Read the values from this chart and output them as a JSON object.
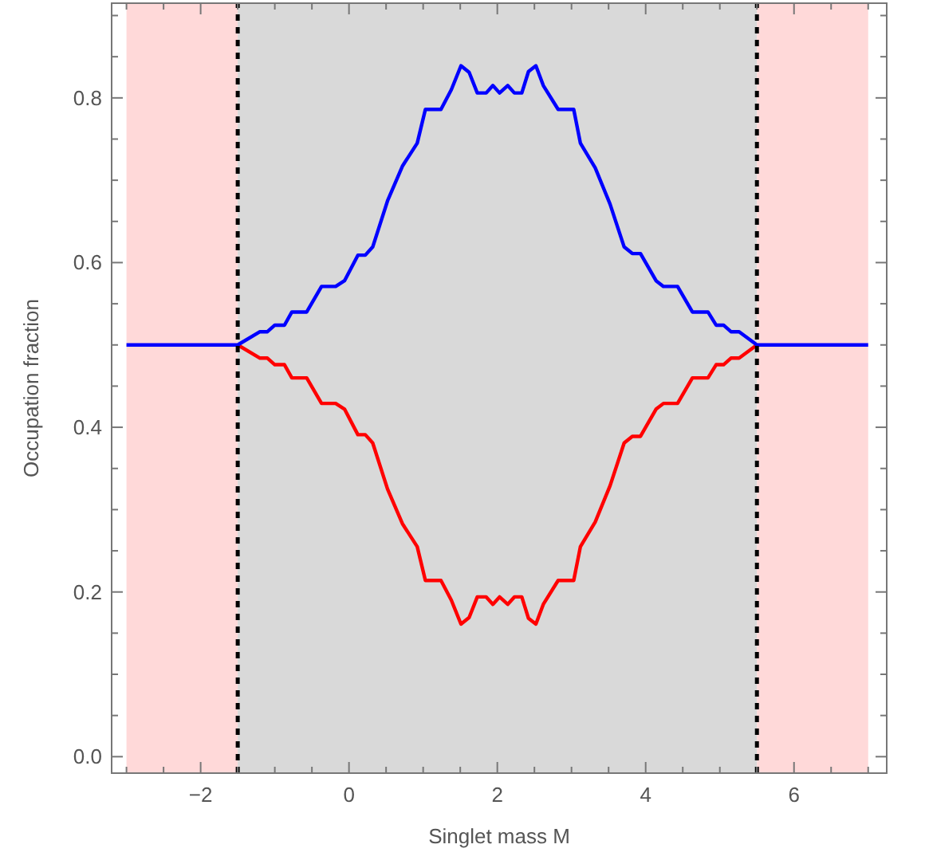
{
  "chart_data": {
    "type": "line",
    "xlabel": "Singlet mass M",
    "ylabel": "Occupation fraction",
    "xlim": [
      -3.2,
      7.25
    ],
    "ylim": [
      -0.02,
      0.915
    ],
    "xticks": [
      {
        "value": -3,
        "label": null
      },
      {
        "value": -2.5,
        "label": null
      },
      {
        "value": -2,
        "label": "−2"
      },
      {
        "value": -1.5,
        "label": null
      },
      {
        "value": -1,
        "label": null
      },
      {
        "value": -0.5,
        "label": null
      },
      0,
      {
        "value": 0.5,
        "label": null
      },
      {
        "value": 1,
        "label": null
      },
      {
        "value": 1.5,
        "label": null
      },
      2,
      {
        "value": 2.5,
        "label": null
      },
      {
        "value": 3,
        "label": null
      },
      {
        "value": 3.5,
        "label": null
      },
      4,
      {
        "value": 4.5,
        "label": null
      },
      {
        "value": 5,
        "label": null
      },
      {
        "value": 5.5,
        "label": null
      },
      6,
      {
        "value": 6.5,
        "label": null
      },
      {
        "value": 7,
        "label": null
      }
    ],
    "yticks": [
      {
        "value": 0,
        "label": "0.0"
      },
      {
        "value": 0.05,
        "label": null
      },
      {
        "value": 0.1,
        "label": null
      },
      {
        "value": 0.15,
        "label": null
      },
      0.2,
      {
        "value": 0.25,
        "label": null
      },
      {
        "value": 0.3,
        "label": null
      },
      {
        "value": 0.35,
        "label": null
      },
      0.4,
      {
        "value": 0.45,
        "label": null
      },
      {
        "value": 0.5,
        "label": null
      },
      {
        "value": 0.55,
        "label": null
      },
      0.6,
      {
        "value": 0.65,
        "label": null
      },
      {
        "value": 0.7,
        "label": null
      },
      {
        "value": 0.75,
        "label": null
      },
      0.8,
      {
        "value": 0.85,
        "label": null
      },
      {
        "value": 0.9,
        "label": null
      }
    ],
    "grid": false,
    "line_style": "solid",
    "marker": "none",
    "bands": [
      {
        "axis": "x",
        "from": -3,
        "to": -1.5,
        "color": "#ffd9d9"
      },
      {
        "axis": "x",
        "from": -1.5,
        "to": 5.5,
        "color": "#d9d9d9"
      },
      {
        "axis": "x",
        "from": 5.5,
        "to": 7,
        "color": "#ffd9d9"
      }
    ],
    "ref_lines": [
      {
        "axis": "x",
        "value": -1.5,
        "color": "#000000",
        "line_style": "dashed"
      },
      {
        "axis": "x",
        "value": 5.5,
        "color": "#000000",
        "line_style": "dashed"
      }
    ],
    "series": [
      {
        "color": "#ff0000",
        "x": [
          -1.5,
          -1.2,
          -1.1,
          -1.0,
          -0.87,
          -0.77,
          -0.57,
          -0.37,
          -0.18,
          -0.06,
          0.12,
          0.22,
          0.32,
          0.52,
          0.72,
          0.92,
          1.03,
          1.24,
          1.38,
          1.51,
          1.62,
          1.73,
          1.85,
          1.94,
          2.03,
          2.14,
          2.23,
          2.33,
          2.42,
          2.52,
          2.62,
          2.82,
          3.03,
          3.12,
          3.32,
          3.52,
          3.71,
          3.82,
          3.93,
          4.14,
          4.24,
          4.43,
          4.63,
          4.84,
          4.95,
          5.05,
          5.15,
          5.26,
          5.5
        ],
        "values": [
          0.5,
          0.484,
          0.484,
          0.476,
          0.476,
          0.46,
          0.46,
          0.429,
          0.429,
          0.422,
          0.391,
          0.391,
          0.381,
          0.325,
          0.283,
          0.255,
          0.214,
          0.214,
          0.19,
          0.161,
          0.169,
          0.194,
          0.194,
          0.185,
          0.194,
          0.185,
          0.194,
          0.194,
          0.168,
          0.161,
          0.185,
          0.214,
          0.214,
          0.255,
          0.285,
          0.329,
          0.381,
          0.389,
          0.389,
          0.422,
          0.429,
          0.429,
          0.46,
          0.46,
          0.476,
          0.476,
          0.484,
          0.484,
          0.5
        ]
      },
      {
        "color": "#0000ff",
        "x": [
          -3,
          -1.5,
          -1.2,
          -1.1,
          -1.0,
          -0.87,
          -0.77,
          -0.57,
          -0.37,
          -0.18,
          -0.06,
          0.12,
          0.22,
          0.32,
          0.52,
          0.72,
          0.92,
          1.03,
          1.24,
          1.38,
          1.51,
          1.62,
          1.73,
          1.85,
          1.94,
          2.03,
          2.14,
          2.23,
          2.33,
          2.42,
          2.52,
          2.62,
          2.82,
          3.03,
          3.12,
          3.32,
          3.52,
          3.71,
          3.82,
          3.93,
          4.14,
          4.24,
          4.43,
          4.63,
          4.84,
          4.95,
          5.05,
          5.15,
          5.26,
          5.5,
          7
        ],
        "values": [
          0.5,
          0.5,
          0.516,
          0.516,
          0.524,
          0.524,
          0.54,
          0.54,
          0.571,
          0.571,
          0.578,
          0.609,
          0.609,
          0.619,
          0.675,
          0.717,
          0.745,
          0.786,
          0.786,
          0.81,
          0.839,
          0.831,
          0.806,
          0.806,
          0.815,
          0.806,
          0.815,
          0.806,
          0.806,
          0.832,
          0.839,
          0.815,
          0.786,
          0.786,
          0.745,
          0.715,
          0.671,
          0.619,
          0.611,
          0.611,
          0.578,
          0.571,
          0.571,
          0.54,
          0.54,
          0.524,
          0.524,
          0.516,
          0.516,
          0.5,
          0.5
        ]
      }
    ]
  }
}
